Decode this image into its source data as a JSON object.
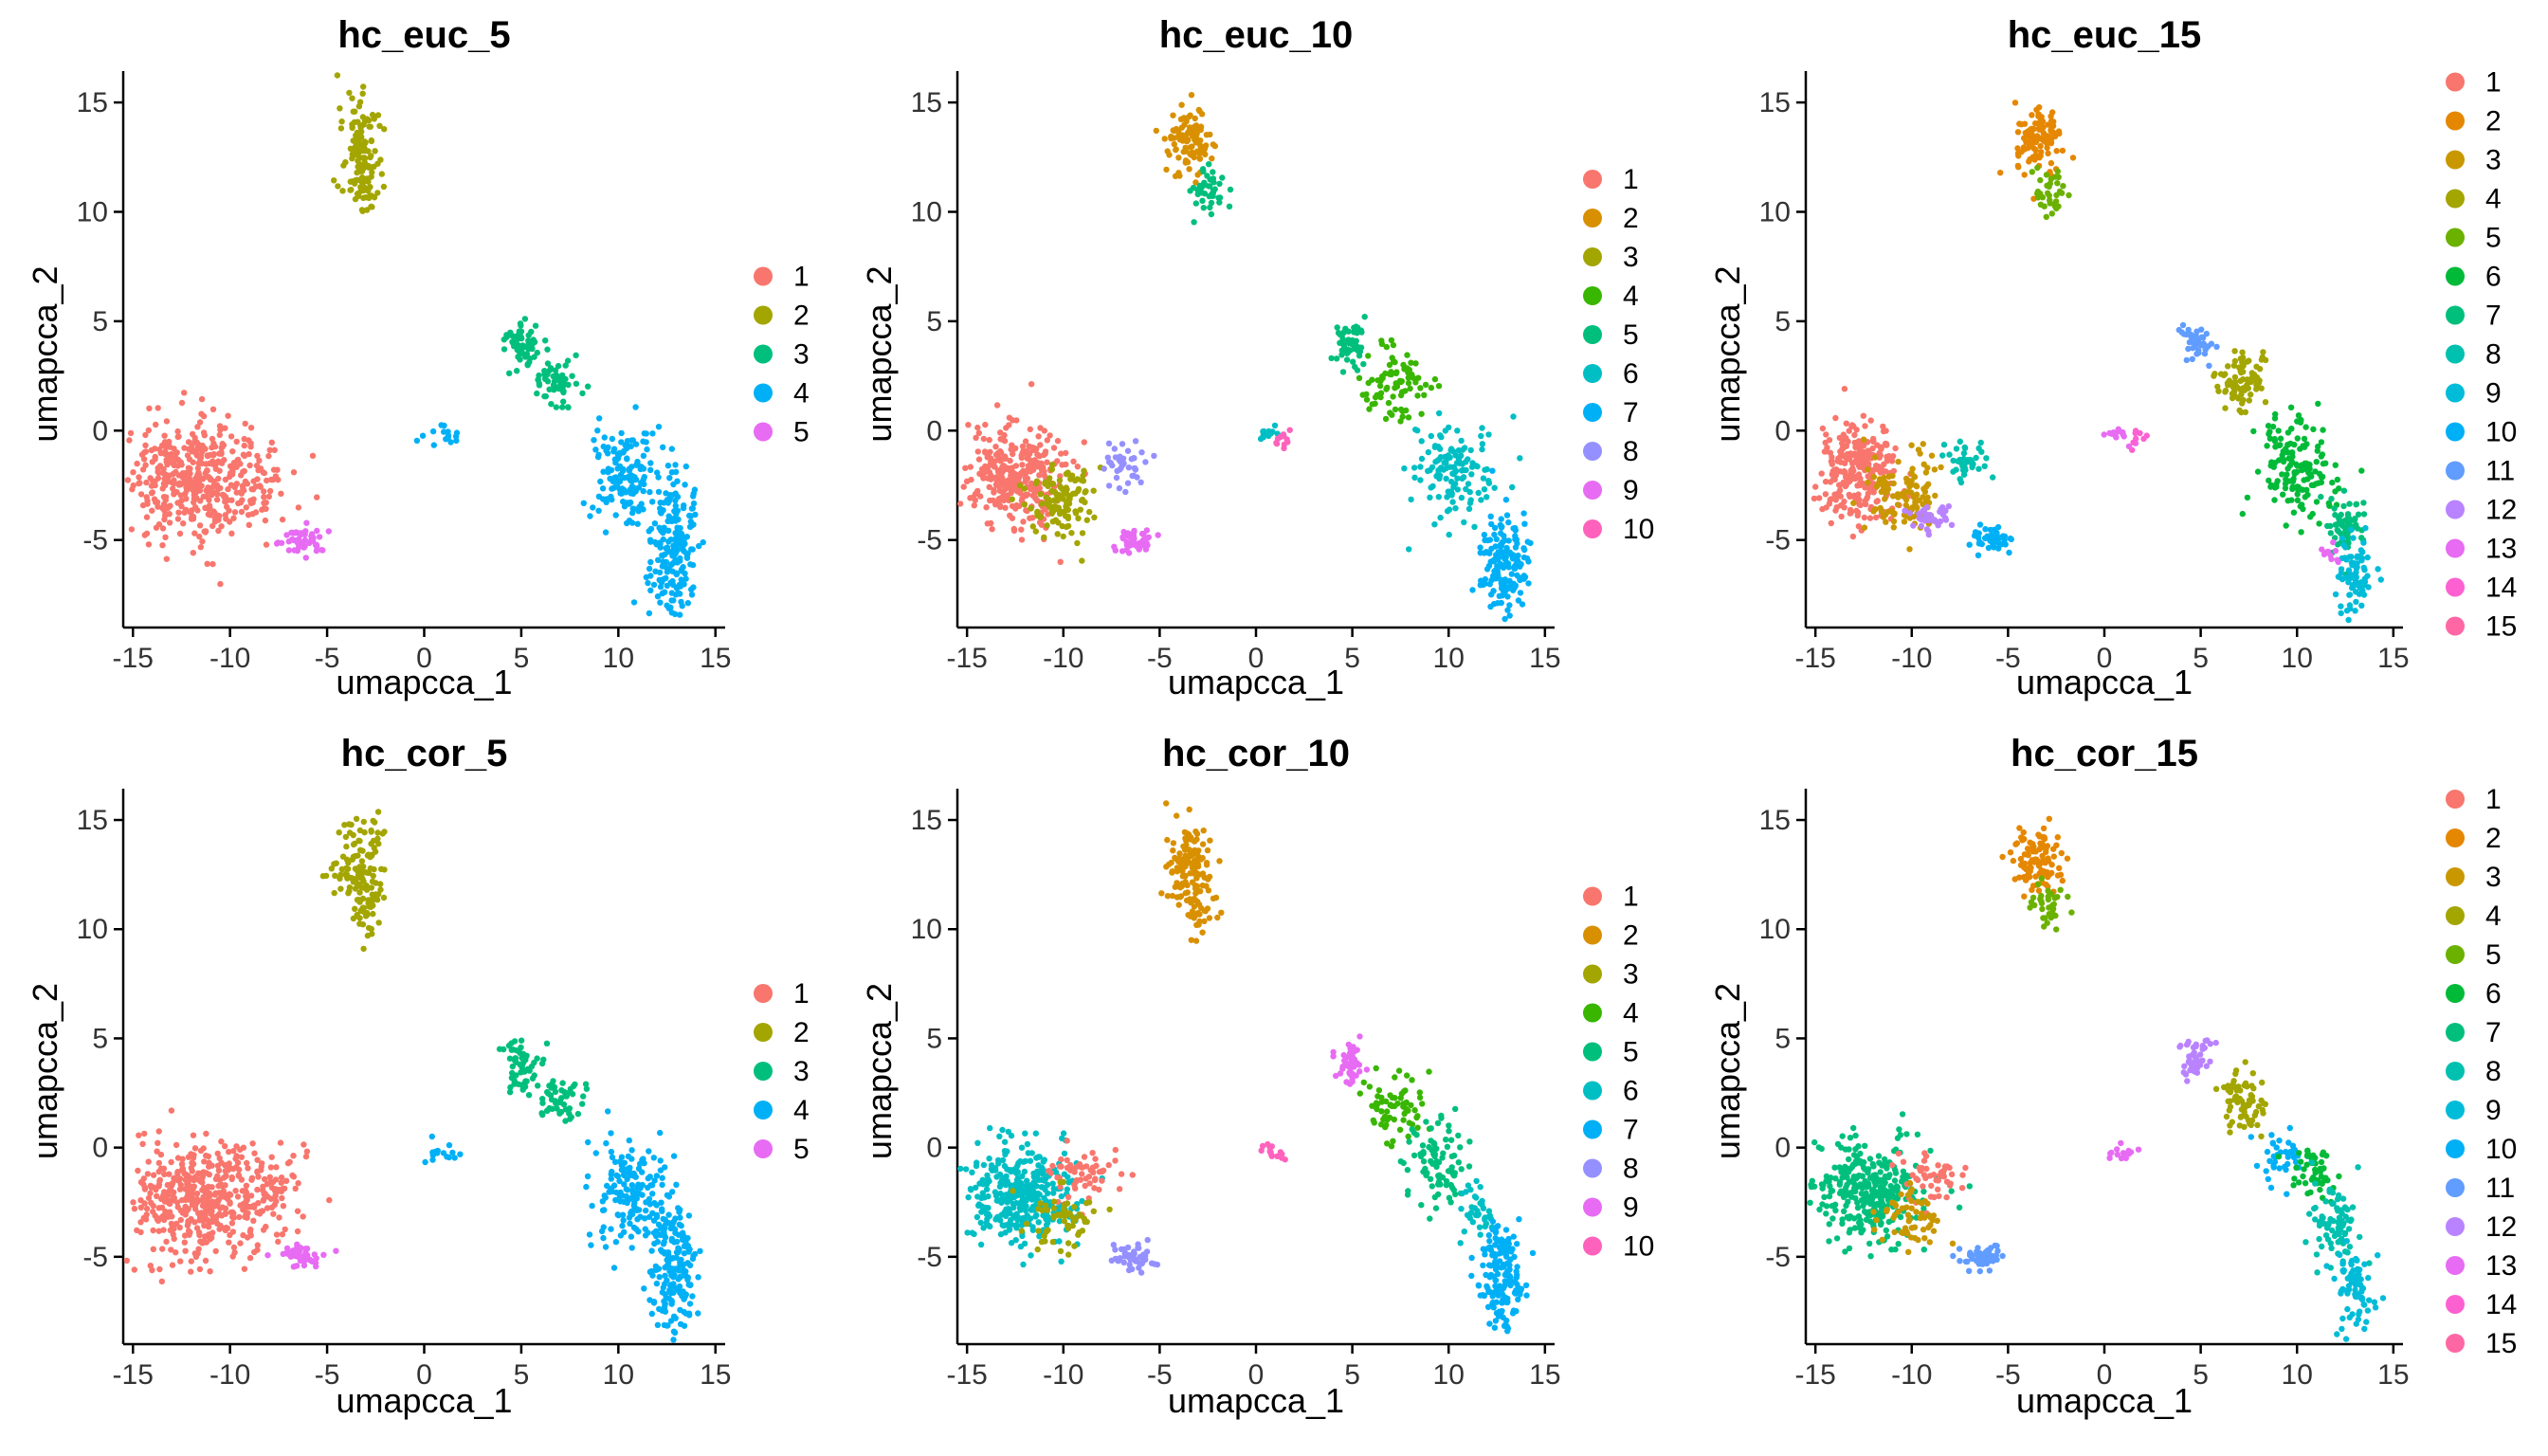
{
  "chart_data": [
    {
      "type": "scatter",
      "title": "hc_euc_5",
      "xlabel": "umapcca_1",
      "ylabel": "umapcca_2",
      "xlim": [
        -15.5,
        15.5
      ],
      "ylim": [
        -9,
        16
      ],
      "xticks": [
        "-15",
        "-10",
        "-5",
        "0",
        "5",
        "10",
        "15"
      ],
      "yticks": [
        "-5",
        "0",
        "5",
        "10",
        "15"
      ],
      "legend": [
        "1",
        "2",
        "3",
        "4",
        "5"
      ],
      "grid": false,
      "regions": [
        {
          "label": "1",
          "x": -12,
          "y": -2.3,
          "sx": 1.6,
          "sy": 1.3,
          "n": 400
        },
        {
          "label": "1",
          "x": -8.5,
          "y": -2.5,
          "sx": 1.0,
          "sy": 1.0,
          "n": 60
        },
        {
          "label": "2",
          "x": -3.3,
          "y": 13.0,
          "sx": 0.5,
          "sy": 1.0,
          "n": 100
        },
        {
          "label": "2",
          "x": -3.0,
          "y": 11.0,
          "sx": 0.4,
          "sy": 0.6,
          "n": 40
        },
        {
          "label": "3",
          "x": 5.0,
          "y": 4.0,
          "sx": 0.5,
          "sy": 0.6,
          "n": 60
        },
        {
          "label": "3",
          "x": 7.0,
          "y": 2.3,
          "sx": 0.7,
          "sy": 0.6,
          "n": 60
        },
        {
          "label": "4",
          "x": 10.5,
          "y": -2.0,
          "sx": 1.0,
          "sy": 1.2,
          "n": 150
        },
        {
          "label": "4",
          "x": 12.8,
          "y": -5.5,
          "sx": 0.6,
          "sy": 1.5,
          "n": 200
        },
        {
          "label": "4",
          "x": 1.0,
          "y": -0.2,
          "sx": 0.5,
          "sy": 0.2,
          "n": 15
        },
        {
          "label": "5",
          "x": -6.2,
          "y": -5.0,
          "sx": 0.5,
          "sy": 0.3,
          "n": 50
        }
      ]
    },
    {
      "type": "scatter",
      "title": "hc_euc_10",
      "xlabel": "umapcca_1",
      "ylabel": "umapcca_2",
      "xlim": [
        -15.5,
        15.5
      ],
      "ylim": [
        -9,
        16
      ],
      "xticks": [
        "-15",
        "-10",
        "-5",
        "0",
        "5",
        "10",
        "15"
      ],
      "yticks": [
        "-5",
        "0",
        "5",
        "10",
        "15"
      ],
      "legend": [
        "1",
        "2",
        "3",
        "4",
        "5",
        "6",
        "7",
        "8",
        "9",
        "10"
      ],
      "grid": false,
      "regions": [
        {
          "label": "1",
          "x": -12.5,
          "y": -2.0,
          "sx": 1.2,
          "sy": 1.2,
          "n": 300
        },
        {
          "label": "3",
          "x": -10.0,
          "y": -3.2,
          "sx": 1.0,
          "sy": 0.8,
          "n": 120
        },
        {
          "label": "8",
          "x": -7.0,
          "y": -1.5,
          "sx": 0.5,
          "sy": 0.5,
          "n": 40
        },
        {
          "label": "9",
          "x": -6.3,
          "y": -5.0,
          "sx": 0.5,
          "sy": 0.3,
          "n": 50
        },
        {
          "label": "2",
          "x": -3.5,
          "y": 13.3,
          "sx": 0.6,
          "sy": 0.8,
          "n": 100
        },
        {
          "label": "5",
          "x": -2.5,
          "y": 11.0,
          "sx": 0.5,
          "sy": 0.6,
          "n": 40
        },
        {
          "label": "6",
          "x": 0.5,
          "y": -0.2,
          "sx": 0.3,
          "sy": 0.2,
          "n": 12
        },
        {
          "label": "10",
          "x": 1.5,
          "y": -0.4,
          "sx": 0.3,
          "sy": 0.2,
          "n": 12
        },
        {
          "label": "5",
          "x": 5.0,
          "y": 4.0,
          "sx": 0.5,
          "sy": 0.6,
          "n": 50
        },
        {
          "label": "4",
          "x": 7.2,
          "y": 2.2,
          "sx": 0.8,
          "sy": 0.8,
          "n": 80
        },
        {
          "label": "6",
          "x": 10.2,
          "y": -1.8,
          "sx": 1.0,
          "sy": 1.2,
          "n": 130
        },
        {
          "label": "7",
          "x": 12.9,
          "y": -5.8,
          "sx": 0.6,
          "sy": 1.2,
          "n": 160
        }
      ]
    },
    {
      "type": "scatter",
      "title": "hc_euc_15",
      "xlabel": "umapcca_1",
      "ylabel": "umapcca_2",
      "xlim": [
        -15.5,
        15.5
      ],
      "ylim": [
        -9,
        16
      ],
      "xticks": [
        "-15",
        "-10",
        "-5",
        "0",
        "5",
        "10",
        "15"
      ],
      "yticks": [
        "-5",
        "0",
        "5",
        "10",
        "15"
      ],
      "legend": [
        "1",
        "2",
        "3",
        "4",
        "5",
        "6",
        "7",
        "8",
        "9",
        "10",
        "11",
        "12",
        "13",
        "14",
        "15"
      ],
      "grid": false,
      "regions": [
        {
          "label": "1",
          "x": -12.8,
          "y": -1.8,
          "sx": 1.1,
          "sy": 1.1,
          "n": 280
        },
        {
          "label": "3",
          "x": -10.3,
          "y": -2.8,
          "sx": 0.9,
          "sy": 0.9,
          "n": 110
        },
        {
          "label": "12",
          "x": -9.0,
          "y": -4.0,
          "sx": 0.6,
          "sy": 0.4,
          "n": 40
        },
        {
          "label": "8",
          "x": -7.2,
          "y": -1.5,
          "sx": 0.6,
          "sy": 0.5,
          "n": 40
        },
        {
          "label": "10",
          "x": -5.7,
          "y": -5.0,
          "sx": 0.5,
          "sy": 0.3,
          "n": 50
        },
        {
          "label": "2",
          "x": -3.5,
          "y": 13.3,
          "sx": 0.6,
          "sy": 0.8,
          "n": 100
        },
        {
          "label": "5",
          "x": -2.8,
          "y": 11.0,
          "sx": 0.5,
          "sy": 0.5,
          "n": 35
        },
        {
          "label": "13",
          "x": 0.7,
          "y": -0.2,
          "sx": 0.4,
          "sy": 0.2,
          "n": 15
        },
        {
          "label": "14",
          "x": 1.8,
          "y": -0.4,
          "sx": 0.3,
          "sy": 0.2,
          "n": 8
        },
        {
          "label": "11",
          "x": 4.8,
          "y": 4.0,
          "sx": 0.4,
          "sy": 0.5,
          "n": 45
        },
        {
          "label": "4",
          "x": 7.2,
          "y": 2.3,
          "sx": 0.7,
          "sy": 0.7,
          "n": 80
        },
        {
          "label": "6",
          "x": 10.0,
          "y": -1.5,
          "sx": 1.0,
          "sy": 1.3,
          "n": 150
        },
        {
          "label": "7",
          "x": 12.5,
          "y": -4.3,
          "sx": 0.5,
          "sy": 0.7,
          "n": 60
        },
        {
          "label": "9",
          "x": 13.0,
          "y": -6.5,
          "sx": 0.5,
          "sy": 0.9,
          "n": 80
        },
        {
          "label": "13",
          "x": 11.8,
          "y": -5.8,
          "sx": 0.3,
          "sy": 0.3,
          "n": 10
        }
      ]
    },
    {
      "type": "scatter",
      "title": "hc_cor_5",
      "xlabel": "umapcca_1",
      "ylabel": "umapcca_2",
      "xlim": [
        -15.5,
        15.5
      ],
      "ylim": [
        -9,
        16
      ],
      "xticks": [
        "-15",
        "-10",
        "-5",
        "0",
        "5",
        "10",
        "15"
      ],
      "yticks": [
        "-5",
        "0",
        "5",
        "10",
        "15"
      ],
      "legend": [
        "1",
        "2",
        "3",
        "4",
        "5"
      ],
      "grid": false,
      "regions": [
        {
          "label": "1",
          "x": -11.5,
          "y": -2.5,
          "sx": 1.8,
          "sy": 1.3,
          "n": 450
        },
        {
          "label": "1",
          "x": -7.8,
          "y": -1.5,
          "sx": 0.8,
          "sy": 0.8,
          "n": 50
        },
        {
          "label": "2",
          "x": -3.3,
          "y": 13.0,
          "sx": 0.6,
          "sy": 1.0,
          "n": 110
        },
        {
          "label": "2",
          "x": -3.0,
          "y": 11.0,
          "sx": 0.4,
          "sy": 0.7,
          "n": 40
        },
        {
          "label": "3",
          "x": 5.0,
          "y": 3.8,
          "sx": 0.5,
          "sy": 0.6,
          "n": 55
        },
        {
          "label": "3",
          "x": 7.0,
          "y": 2.3,
          "sx": 0.7,
          "sy": 0.6,
          "n": 55
        },
        {
          "label": "4",
          "x": 10.5,
          "y": -2.0,
          "sx": 1.0,
          "sy": 1.2,
          "n": 150
        },
        {
          "label": "4",
          "x": 12.8,
          "y": -5.5,
          "sx": 0.6,
          "sy": 1.5,
          "n": 200
        },
        {
          "label": "4",
          "x": 1.0,
          "y": -0.3,
          "sx": 0.5,
          "sy": 0.2,
          "n": 15
        },
        {
          "label": "5",
          "x": -6.3,
          "y": -5.0,
          "sx": 0.6,
          "sy": 0.3,
          "n": 50
        }
      ]
    },
    {
      "type": "scatter",
      "title": "hc_cor_10",
      "xlabel": "umapcca_1",
      "ylabel": "umapcca_2",
      "xlim": [
        -15.5,
        15.5
      ],
      "ylim": [
        -9,
        16
      ],
      "xticks": [
        "-15",
        "-10",
        "-5",
        "0",
        "5",
        "10",
        "15"
      ],
      "yticks": [
        "-5",
        "0",
        "5",
        "10",
        "15"
      ],
      "legend": [
        "1",
        "2",
        "3",
        "4",
        "5",
        "6",
        "7",
        "8",
        "9",
        "10"
      ],
      "grid": false,
      "regions": [
        {
          "label": "6",
          "x": -12.3,
          "y": -2.2,
          "sx": 1.4,
          "sy": 1.2,
          "n": 350
        },
        {
          "label": "1",
          "x": -9.0,
          "y": -1.3,
          "sx": 0.9,
          "sy": 0.6,
          "n": 60
        },
        {
          "label": "3",
          "x": -10.0,
          "y": -3.3,
          "sx": 0.9,
          "sy": 0.7,
          "n": 60
        },
        {
          "label": "8",
          "x": -6.3,
          "y": -5.0,
          "sx": 0.6,
          "sy": 0.3,
          "n": 50
        },
        {
          "label": "2",
          "x": -3.5,
          "y": 13.0,
          "sx": 0.6,
          "sy": 1.0,
          "n": 110
        },
        {
          "label": "2",
          "x": -3.0,
          "y": 11.0,
          "sx": 0.4,
          "sy": 0.7,
          "n": 40
        },
        {
          "label": "10",
          "x": 1.0,
          "y": -0.3,
          "sx": 0.5,
          "sy": 0.2,
          "n": 15
        },
        {
          "label": "9",
          "x": 4.8,
          "y": 4.0,
          "sx": 0.4,
          "sy": 0.5,
          "n": 45
        },
        {
          "label": "4",
          "x": 7.2,
          "y": 2.0,
          "sx": 0.8,
          "sy": 0.8,
          "n": 70
        },
        {
          "label": "5",
          "x": 9.5,
          "y": -0.8,
          "sx": 0.8,
          "sy": 1.0,
          "n": 90
        },
        {
          "label": "6",
          "x": 11.5,
          "y": -3.0,
          "sx": 0.5,
          "sy": 0.6,
          "n": 40
        },
        {
          "label": "7",
          "x": 12.8,
          "y": -6.0,
          "sx": 0.6,
          "sy": 1.2,
          "n": 160
        }
      ]
    },
    {
      "type": "scatter",
      "title": "hc_cor_15",
      "xlabel": "umapcca_1",
      "ylabel": "umapcca_2",
      "xlim": [
        -15.5,
        15.5
      ],
      "ylim": [
        -9,
        16
      ],
      "xticks": [
        "-15",
        "-10",
        "-5",
        "0",
        "5",
        "10",
        "15"
      ],
      "yticks": [
        "-5",
        "0",
        "5",
        "10",
        "15"
      ],
      "legend": [
        "1",
        "2",
        "3",
        "4",
        "5",
        "6",
        "7",
        "8",
        "9",
        "10",
        "11",
        "12",
        "13",
        "14",
        "15"
      ],
      "grid": false,
      "regions": [
        {
          "label": "7",
          "x": -12.3,
          "y": -2.0,
          "sx": 1.4,
          "sy": 1.2,
          "n": 320
        },
        {
          "label": "1",
          "x": -9.0,
          "y": -1.3,
          "sx": 0.9,
          "sy": 0.6,
          "n": 50
        },
        {
          "label": "3",
          "x": -10.0,
          "y": -3.3,
          "sx": 0.8,
          "sy": 0.7,
          "n": 60
        },
        {
          "label": "11",
          "x": -6.3,
          "y": -5.0,
          "sx": 0.6,
          "sy": 0.3,
          "n": 50
        },
        {
          "label": "2",
          "x": -3.5,
          "y": 13.3,
          "sx": 0.6,
          "sy": 0.8,
          "n": 100
        },
        {
          "label": "5",
          "x": -2.8,
          "y": 11.0,
          "sx": 0.5,
          "sy": 0.5,
          "n": 35
        },
        {
          "label": "13",
          "x": 1.0,
          "y": -0.3,
          "sx": 0.5,
          "sy": 0.2,
          "n": 15
        },
        {
          "label": "12",
          "x": 4.8,
          "y": 4.0,
          "sx": 0.4,
          "sy": 0.5,
          "n": 45
        },
        {
          "label": "4",
          "x": 7.2,
          "y": 2.0,
          "sx": 0.7,
          "sy": 0.7,
          "n": 70
        },
        {
          "label": "10",
          "x": 9.2,
          "y": -0.5,
          "sx": 0.6,
          "sy": 0.6,
          "n": 40
        },
        {
          "label": "6",
          "x": 10.8,
          "y": -1.0,
          "sx": 0.6,
          "sy": 0.7,
          "n": 50
        },
        {
          "label": "8",
          "x": 12.0,
          "y": -3.5,
          "sx": 0.6,
          "sy": 1.0,
          "n": 80
        },
        {
          "label": "9",
          "x": 13.0,
          "y": -6.5,
          "sx": 0.5,
          "sy": 0.9,
          "n": 70
        }
      ]
    }
  ],
  "palettes": {
    "k5": [
      "#F8766D",
      "#A3A500",
      "#00BF7D",
      "#00B0F6",
      "#E76BF3"
    ],
    "k10": [
      "#F8766D",
      "#D89000",
      "#A3A500",
      "#39B600",
      "#00BF7D",
      "#00BFC4",
      "#00B0F6",
      "#9590FF",
      "#E76BF3",
      "#FF62BC"
    ],
    "k15": [
      "#F8766D",
      "#E58700",
      "#C99800",
      "#A3A500",
      "#6BB100",
      "#00BA38",
      "#00BF7D",
      "#00C0AF",
      "#00BCD8",
      "#00B0F6",
      "#619CFF",
      "#B983FF",
      "#E76BF3",
      "#FD61D1",
      "#FF67A4"
    ]
  }
}
